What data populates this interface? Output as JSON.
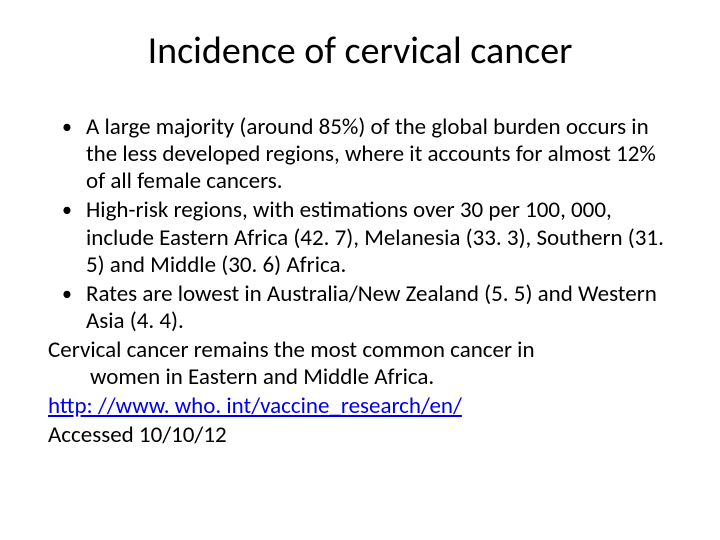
{
  "title": "Incidence of cervical cancer",
  "bullets": [
    "A large majority (around 85%) of the global burden occurs in the less developed regions, where it accounts for almost 12% of all female cancers.",
    "High-risk regions, with estimations over 30 per 100, 000, include Eastern Africa (42. 7), Melanesia (33. 3), Southern (31. 5) and Middle (30. 6) Africa.",
    " Rates are lowest in Australia/New Zealand (5. 5) and Western Asia (4. 4)."
  ],
  "closing_line1": "Cervical cancer remains the most common cancer in",
  "closing_line2": "women in Eastern and Middle Africa.",
  "url": "http: //www. who. int/vaccine_research/en/",
  "accessed": "Accessed 10/10/12",
  "colors": {
    "text": "#000000",
    "background": "#ffffff",
    "link": "#0000ee"
  },
  "typography": {
    "title_fontsize": 38,
    "body_fontsize": 23,
    "font_family": "Calibri"
  }
}
